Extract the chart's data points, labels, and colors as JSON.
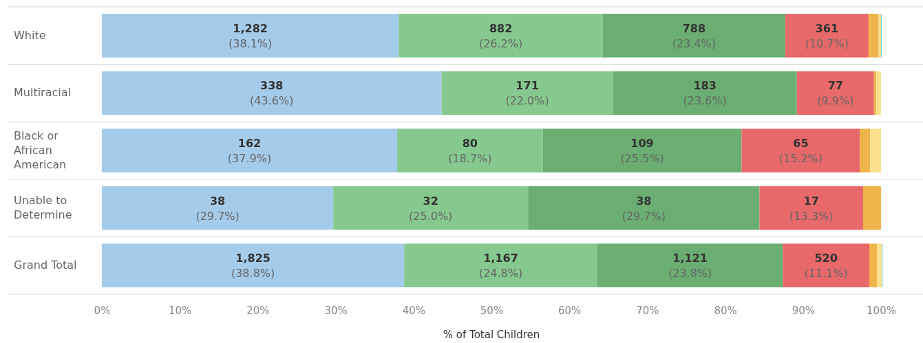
{
  "chart_data": {
    "type": "bar",
    "orientation": "horizontal",
    "stacked": true,
    "xlabel": "% of Total Children",
    "categories": [
      "White",
      "Multiracial",
      "Black or African American",
      "Unable to Determine",
      "Grand Total"
    ],
    "xlim": [
      0,
      100
    ],
    "xticks": [
      {
        "value": 0,
        "label": "0%"
      },
      {
        "value": 10,
        "label": "10%"
      },
      {
        "value": 20,
        "label": "20%"
      },
      {
        "value": 30,
        "label": "30%"
      },
      {
        "value": 40,
        "label": "40%"
      },
      {
        "value": 50,
        "label": "50%"
      },
      {
        "value": 60,
        "label": "60%"
      },
      {
        "value": 70,
        "label": "70%"
      },
      {
        "value": 80,
        "label": "80%"
      },
      {
        "value": 90,
        "label": "90%"
      },
      {
        "value": 100,
        "label": "100%"
      }
    ],
    "series": [
      {
        "color": "#a5cbea",
        "values": [
          38.1,
          43.6,
          37.9,
          29.7,
          38.8
        ],
        "value_labels": [
          "1,282\n(38.1%)",
          "338\n(43.6%)",
          "162\n(37.9%)",
          "38\n(29.7%)",
          "1,825\n(38.8%)"
        ]
      },
      {
        "color": "#86c98f",
        "values": [
          26.2,
          22.0,
          18.7,
          25.0,
          24.8
        ],
        "value_labels": [
          "882\n(26.2%)",
          "171\n(22.0%)",
          "80\n(18.7%)",
          "32\n(25.0%)",
          "1,167\n(24.8%)"
        ]
      },
      {
        "color": "#6aae71",
        "values": [
          23.4,
          23.6,
          25.5,
          29.7,
          23.8
        ],
        "value_labels": [
          "788\n(23.4%)",
          "183\n(23.6%)",
          "109\n(25.5%)",
          "38\n(29.7%)",
          "1,121\n(23.8%)"
        ]
      },
      {
        "color": "#e8696a",
        "values": [
          10.7,
          9.9,
          15.2,
          13.3,
          11.1
        ],
        "value_labels": [
          "361\n(10.7%)",
          "77\n(9.9%)",
          "65\n(15.2%)",
          "17\n(13.3%)",
          "520\n(11.1%)"
        ]
      },
      {
        "color": "#efb54a",
        "values": [
          1.3,
          0.3,
          1.3,
          2.3,
          1.0
        ]
      },
      {
        "color": "#fbe08c",
        "values": [
          0.3,
          0.6,
          1.4,
          null,
          0.6
        ]
      },
      {
        "color": "#7ecfe0",
        "values": [
          0.1,
          null,
          null,
          null,
          0.1
        ]
      }
    ]
  }
}
